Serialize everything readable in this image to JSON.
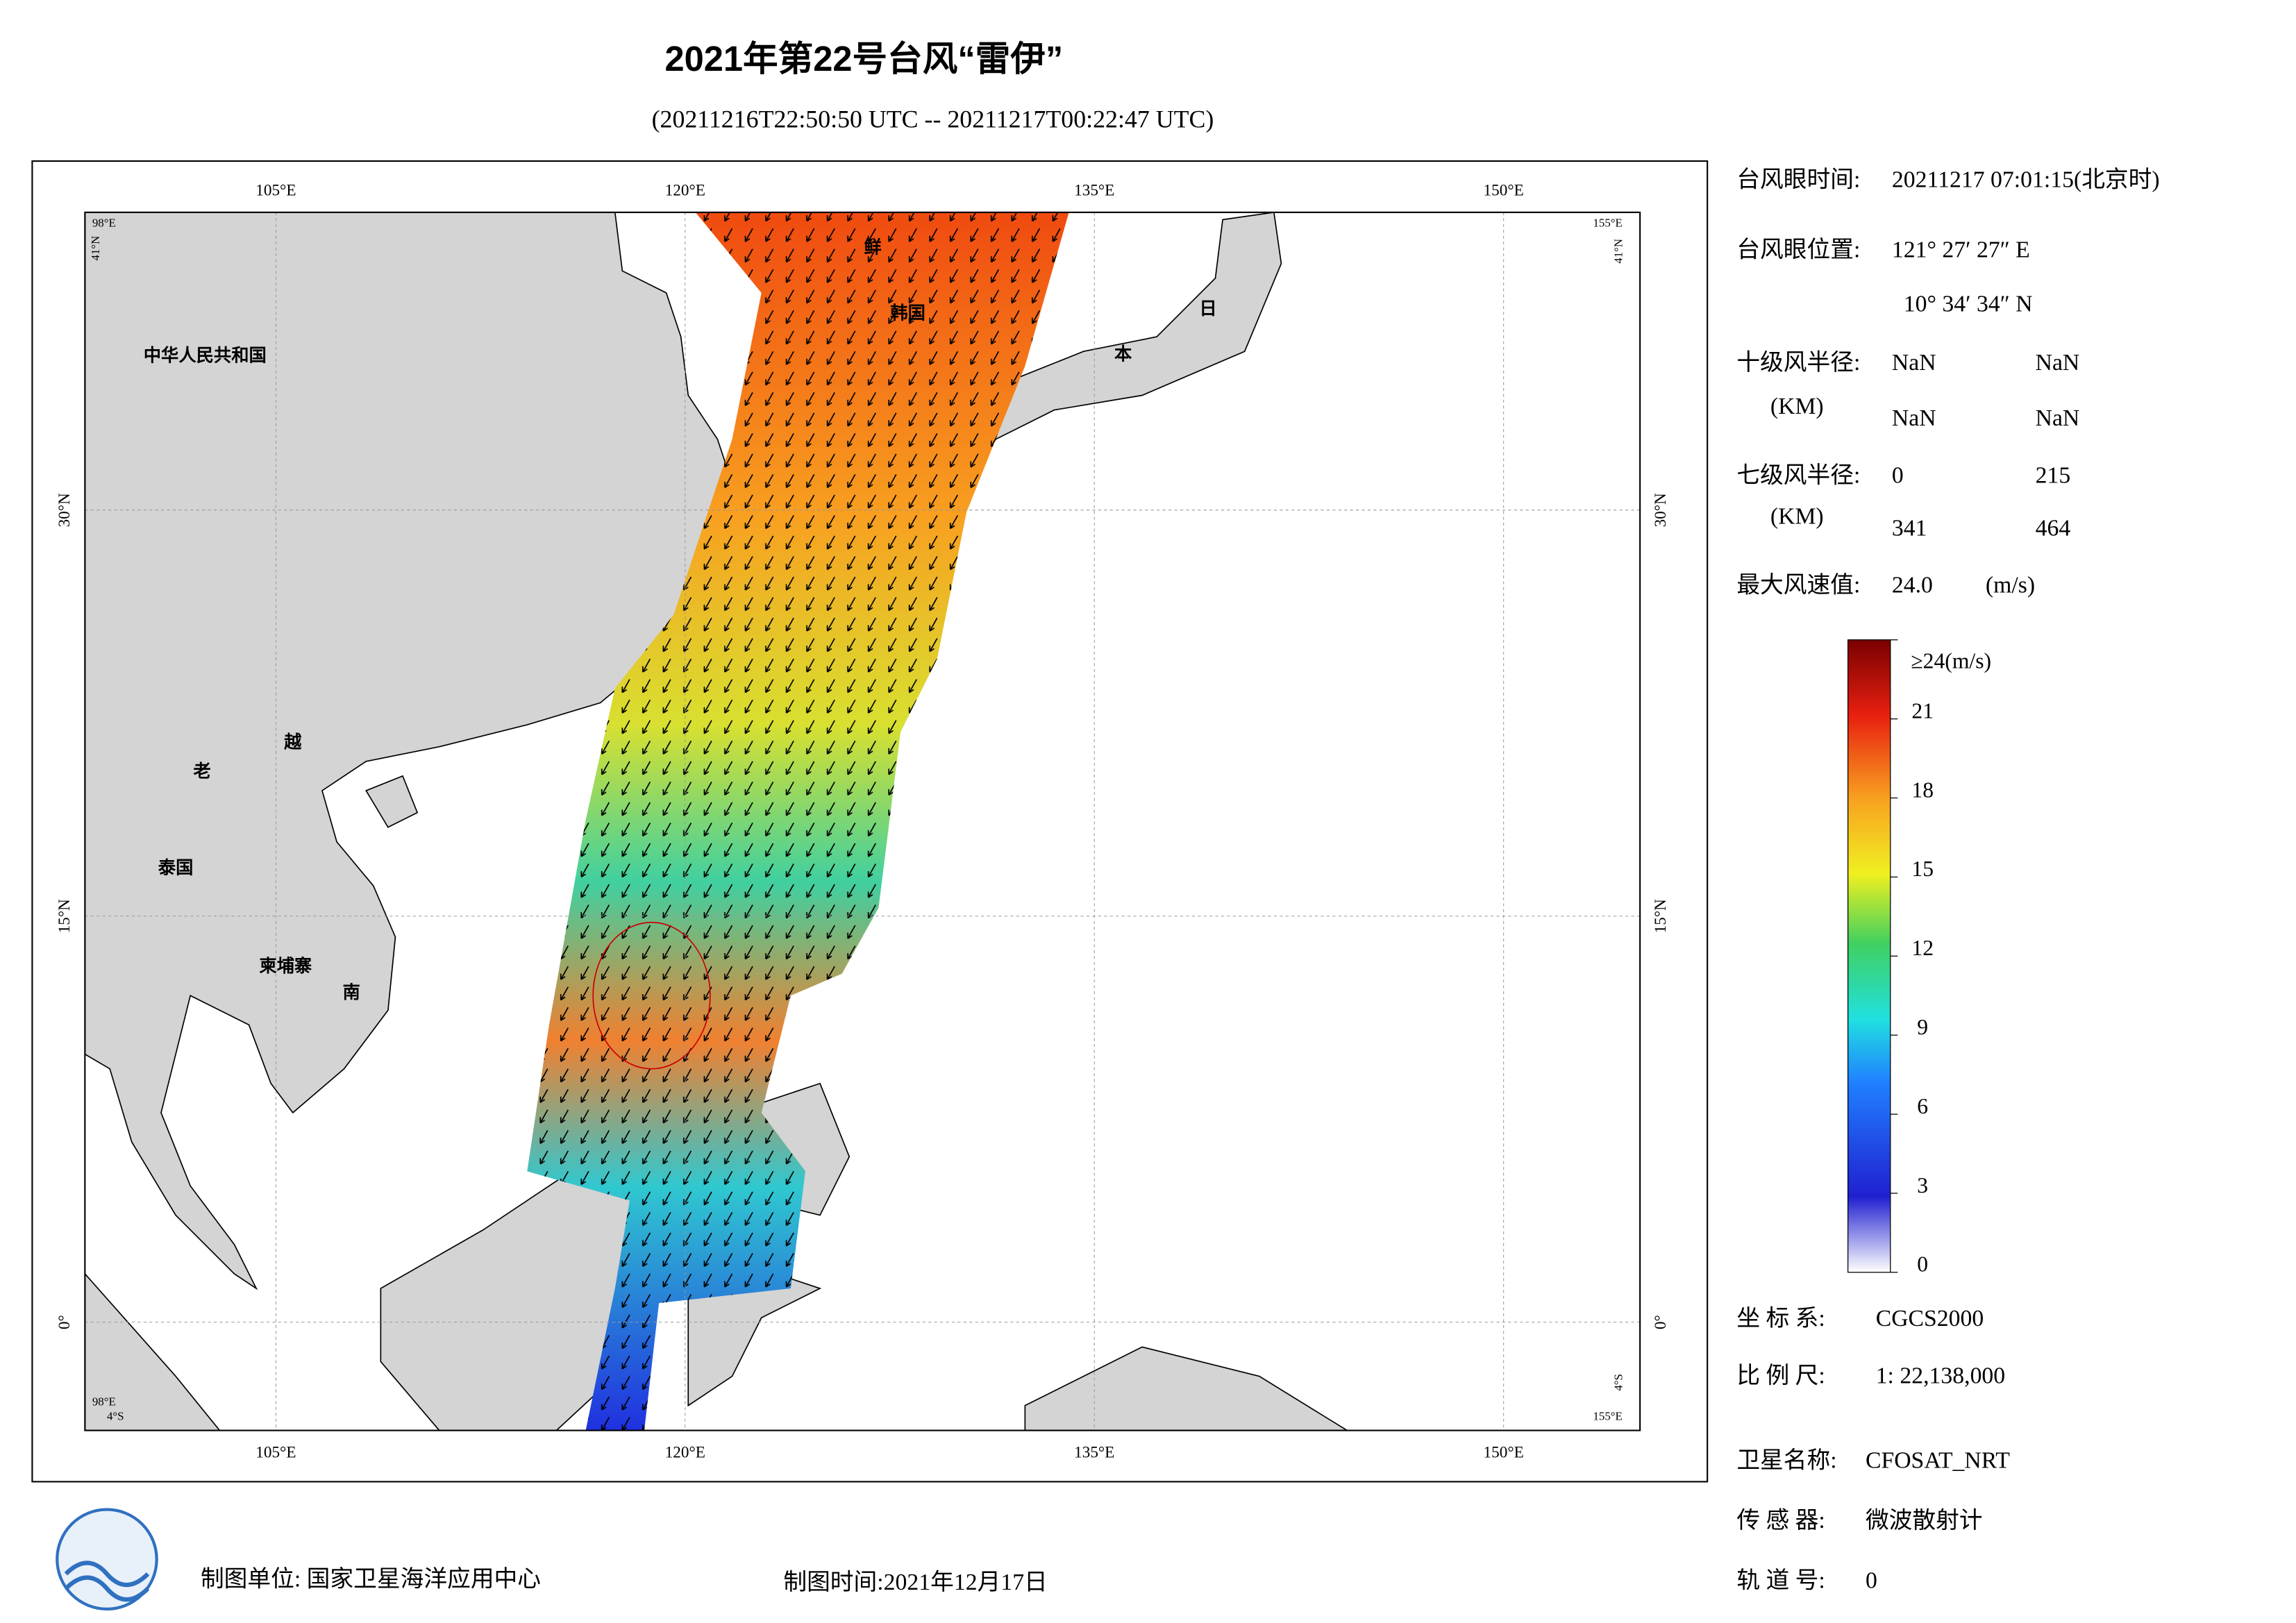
{
  "header": {
    "title": "2021年第22号台风“雷伊”",
    "subtitle": "(20211216T22:50:50 UTC -- 20211217T00:22:47 UTC)"
  },
  "map": {
    "lon_ticks": [
      {
        "value": 105,
        "label": "105°E"
      },
      {
        "value": 120,
        "label": "120°E"
      },
      {
        "value": 135,
        "label": "135°E"
      },
      {
        "value": 150,
        "label": "150°E"
      }
    ],
    "lat_ticks": [
      {
        "value": 30,
        "label": "30°N"
      },
      {
        "value": 15,
        "label": "15°N"
      },
      {
        "value": 0,
        "label": "0°"
      }
    ],
    "extent": {
      "west": {
        "value": 98,
        "label": "98°E"
      },
      "east": {
        "value": 155,
        "label": "155°E"
      },
      "north": {
        "value": 41,
        "label": "41°N"
      },
      "south": {
        "value": -4,
        "label": "4°S"
      }
    },
    "place_labels": [
      "中华人民共和国",
      "老",
      "越",
      "泰国",
      "柬埔寨",
      "南",
      "鲜",
      "韩国",
      "日",
      "本"
    ]
  },
  "info": {
    "eye_time": {
      "label": "台风眼时间:",
      "value": "20211217 07:01:15(北京时)"
    },
    "eye_position": {
      "label": "台风眼位置:",
      "lon": "121° 27′ 27″ E",
      "lat": "10° 34′ 34″ N"
    },
    "r10": {
      "label": "十级风半径:",
      "unit": "(KM)",
      "values": [
        "NaN",
        "NaN",
        "NaN",
        "NaN"
      ]
    },
    "r7": {
      "label": "七级风半径:",
      "unit": "(KM)",
      "values": [
        "0",
        "215",
        "341",
        "464"
      ]
    },
    "max_wind": {
      "label": "最大风速值:",
      "value": "24.0",
      "unit": "(m/s)"
    },
    "coord": {
      "label": "坐 标 系:",
      "value": "CGCS2000"
    },
    "scale": {
      "label": "比 例 尺:",
      "value": "1: 22,138,000"
    },
    "satellite": {
      "label": "卫星名称:",
      "value": "CFOSAT_NRT"
    },
    "sensor": {
      "label": "传 感 器:",
      "value": "微波散射计"
    },
    "orbit": {
      "label": "轨 道 号:",
      "value": "0"
    }
  },
  "colorbar": {
    "range": [
      0,
      24
    ],
    "ticks": [
      0,
      3,
      6,
      9,
      12,
      15,
      18,
      21
    ],
    "max_label": "≥24(m/s)"
  },
  "footer": {
    "unit": "制图单位: 国家卫星海洋应用中心",
    "date": "制图时间:2021年12月17日"
  }
}
